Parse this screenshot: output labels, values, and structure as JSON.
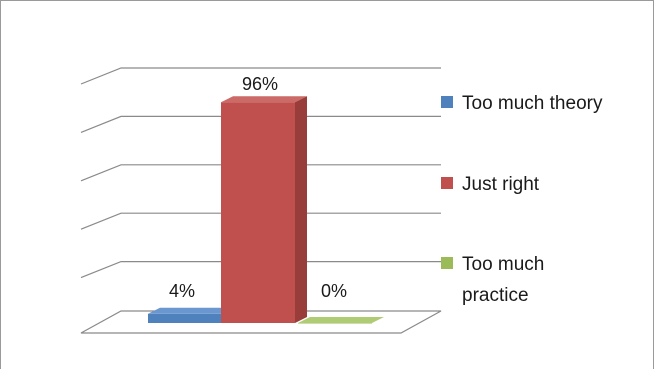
{
  "chart_data": {
    "type": "bar",
    "style": "3d-column",
    "categories": [
      "Too much theory",
      "Just right",
      "Too much practice"
    ],
    "values": [
      4,
      96,
      0
    ],
    "value_labels": [
      "4%",
      "96%",
      "0%"
    ],
    "ylim": [
      0,
      100
    ],
    "grid": true,
    "legend_position": "right",
    "legend": [
      {
        "label": "Too much theory",
        "lines": [
          "Too much theory"
        ],
        "color": "#4F81BD"
      },
      {
        "label": "Just right",
        "lines": [
          "Just right"
        ],
        "color": "#C0504D"
      },
      {
        "label": "Too much practice",
        "lines": [
          "Too much",
          "practice"
        ],
        "color": "#9BBB59"
      }
    ],
    "colors": {
      "front": [
        "#4F81BD",
        "#C0504D",
        "#9BBB59"
      ],
      "top": [
        "#6A97CF",
        "#CB6A67",
        "#AFCB73"
      ],
      "side": [
        "#3A6596",
        "#983D3A",
        "#7A9443"
      ]
    }
  }
}
